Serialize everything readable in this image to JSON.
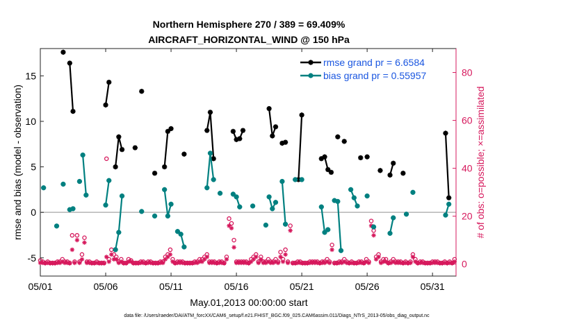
{
  "chart_data": {
    "type": "line",
    "title_lines": [
      "Northern Hemisphere 270 / 389 = 69.409%",
      "AIRCRAFT_HORIZONTAL_WIND @ 150 hPa"
    ],
    "xlabel": "May.01,2013 00:00:00 start",
    "ylabel": "rmse and bias (model - observation)",
    "y2label": "# of obs: o=possible; ×=assimilated",
    "xlim": [
      0,
      31.8
    ],
    "ylim": [
      -7,
      18
    ],
    "y2lim": [
      -5,
      90
    ],
    "x_ticks": [
      0,
      5,
      10,
      15,
      20,
      25,
      30
    ],
    "x_tick_labels": [
      "05/01",
      "05/06",
      "05/11",
      "05/16",
      "05/21",
      "05/26",
      "05/31"
    ],
    "y_ticks": [
      -5,
      0,
      5,
      10,
      15
    ],
    "y2_ticks": [
      0,
      20,
      40,
      60,
      80
    ],
    "zero_line": 0,
    "grid": false,
    "colors": {
      "rmse": "#000000",
      "bias": "#008080",
      "obs": "#d6185c",
      "zero": "#b4b4b4"
    },
    "legend": {
      "placement": "top-right",
      "entries": [
        {
          "key": "rmse",
          "label": "rmse grand pr = 6.6584"
        },
        {
          "key": "bias",
          "label": "bias grand pr = 0.55957"
        }
      ]
    },
    "series": [
      {
        "key": "rmse",
        "segments": [
          [
            [
              1.75,
              17.6
            ]
          ],
          [
            [
              2.25,
              16.4
            ],
            [
              2.5,
              11.1
            ]
          ],
          [
            [
              5.0,
              11.8
            ],
            [
              5.25,
              14.3
            ]
          ],
          [
            [
              5.75,
              5.0
            ],
            [
              6.0,
              8.3
            ],
            [
              6.25,
              6.9
            ]
          ],
          [
            [
              7.25,
              7.1
            ]
          ],
          [
            [
              7.75,
              13.3
            ]
          ],
          [
            [
              8.75,
              4.3
            ]
          ],
          [
            [
              9.5,
              5.0
            ],
            [
              9.75,
              8.9
            ],
            [
              10.0,
              9.2
            ]
          ],
          [
            [
              11.0,
              6.4
            ]
          ],
          [
            [
              12.75,
              9.0
            ],
            [
              13.0,
              11.0
            ],
            [
              13.25,
              5.9
            ]
          ],
          [
            [
              14.75,
              8.9
            ],
            [
              15.0,
              8.0
            ],
            [
              15.25,
              8.1
            ],
            [
              15.5,
              9.0
            ]
          ],
          [
            [
              17.5,
              11.4
            ],
            [
              17.75,
              8.4
            ],
            [
              18.0,
              9.4
            ]
          ],
          [
            [
              18.5,
              7.6
            ],
            [
              18.75,
              7.7
            ]
          ],
          [
            [
              19.75,
              3.6
            ],
            [
              20.0,
              10.7
            ]
          ],
          [
            [
              21.5,
              5.9
            ],
            [
              21.75,
              6.1
            ],
            [
              22.0,
              4.7
            ],
            [
              22.25,
              4.4
            ]
          ],
          [
            [
              22.75,
              8.3
            ]
          ],
          [
            [
              23.25,
              7.8
            ]
          ],
          [
            [
              24.5,
              6.0
            ]
          ],
          [
            [
              25.0,
              6.1
            ]
          ],
          [
            [
              26.0,
              4.6
            ]
          ],
          [
            [
              26.75,
              4.1
            ],
            [
              27.0,
              5.4
            ]
          ],
          [
            [
              27.75,
              4.3
            ]
          ],
          [
            [
              31.0,
              8.7
            ],
            [
              31.25,
              1.6
            ]
          ]
        ]
      },
      {
        "key": "bias",
        "segments": [
          [
            [
              0.25,
              2.7
            ]
          ],
          [
            [
              1.25,
              -1.5
            ]
          ],
          [
            [
              1.75,
              3.1
            ]
          ],
          [
            [
              2.25,
              0.3
            ],
            [
              2.5,
              0.4
            ]
          ],
          [
            [
              3.0,
              3.4
            ]
          ],
          [
            [
              3.25,
              6.3
            ],
            [
              3.5,
              1.9
            ]
          ],
          [
            [
              5.0,
              0.8
            ],
            [
              5.25,
              3.5
            ]
          ],
          [
            [
              5.75,
              -4.1
            ],
            [
              6.0,
              -2.2
            ],
            [
              6.25,
              1.8
            ]
          ],
          [
            [
              7.75,
              0.1
            ]
          ],
          [
            [
              8.75,
              -0.4
            ]
          ],
          [
            [
              9.5,
              2.5
            ],
            [
              9.75,
              -0.4
            ],
            [
              10.0,
              0.9
            ]
          ],
          [
            [
              10.5,
              -2.1
            ]
          ],
          [
            [
              10.75,
              -2.4
            ],
            [
              11.0,
              -3.8
            ]
          ],
          [
            [
              12.75,
              2.7
            ],
            [
              13.0,
              6.5
            ],
            [
              13.25,
              3.6
            ]
          ],
          [
            [
              13.75,
              2.1
            ]
          ],
          [
            [
              14.75,
              2.0
            ],
            [
              15.0,
              1.7
            ],
            [
              15.25,
              0.6
            ]
          ],
          [
            [
              16.25,
              0.7
            ]
          ],
          [
            [
              17.25,
              -1.4
            ]
          ],
          [
            [
              17.5,
              1.7
            ],
            [
              17.75,
              0.4
            ],
            [
              18.0,
              1.1
            ]
          ],
          [
            [
              18.5,
              3.4
            ],
            [
              18.75,
              -1.3
            ]
          ],
          [
            [
              19.5,
              3.6
            ]
          ],
          [
            [
              20.0,
              3.6
            ]
          ],
          [
            [
              21.5,
              0.6
            ],
            [
              21.75,
              -2.2
            ],
            [
              22.0,
              -1.9
            ]
          ],
          [
            [
              22.5,
              1.3
            ]
          ],
          [
            [
              22.75,
              1.2
            ],
            [
              23.0,
              -4.2
            ]
          ],
          [
            [
              23.75,
              2.5
            ],
            [
              24.0,
              1.6
            ],
            [
              24.25,
              0.7
            ]
          ],
          [
            [
              25.0,
              1.8
            ]
          ],
          [
            [
              25.5,
              -1.6
            ]
          ],
          [
            [
              26.75,
              -2.3
            ],
            [
              27.0,
              -0.6
            ]
          ],
          [
            [
              28.0,
              -0.2
            ]
          ],
          [
            [
              28.5,
              2.2
            ]
          ],
          [
            [
              31.0,
              -0.3
            ],
            [
              31.25,
              0.9
            ]
          ]
        ]
      }
    ],
    "obs_possible_y2": [
      1.5,
      1,
      0.5,
      1,
      0.5,
      0.5,
      0.5,
      1,
      1,
      2,
      1,
      1,
      0.5,
      12,
      1,
      12,
      1,
      4,
      11,
      1,
      1,
      0.5,
      0.5,
      1,
      0.5,
      0.5,
      0.5,
      44,
      2,
      6,
      4,
      3,
      1,
      2,
      0.5,
      0.5,
      2,
      1.5,
      0.5,
      0.5,
      0.5,
      1,
      1,
      0.5,
      1,
      1,
      0.5,
      0.5,
      0.5,
      1,
      1,
      3,
      4,
      6,
      2,
      0.5,
      1,
      1,
      1,
      0.5,
      0.5,
      0.5,
      0.5,
      1,
      1,
      2,
      2,
      3,
      4,
      1,
      1,
      1,
      0.5,
      1,
      1,
      0.5,
      3,
      19,
      17,
      10,
      1,
      1,
      1,
      1,
      1,
      0.5,
      2,
      3,
      4,
      1,
      3,
      1,
      1,
      2,
      1,
      1,
      2,
      1,
      5,
      2,
      6,
      1,
      16,
      0.5,
      0.5,
      1,
      1,
      0.5,
      0.5,
      0.5,
      1,
      1,
      1,
      1,
      0.5,
      1,
      1,
      2,
      1,
      8,
      0.5,
      0.5,
      1,
      1,
      2,
      1,
      0.5,
      1,
      0.5,
      0.5,
      1,
      1,
      0.5,
      2,
      1,
      18,
      14,
      3,
      4,
      1,
      2,
      2,
      0.5,
      1,
      2,
      1,
      1,
      1,
      0.5,
      1,
      0.5,
      1,
      4,
      2,
      0.5,
      1,
      1,
      0.5,
      0.5,
      0.5,
      1,
      1,
      1,
      0.5,
      0.5,
      1,
      0.5,
      1,
      0.5,
      2,
      4,
      2,
      1,
      2,
      0.5,
      1,
      1
    ],
    "obs_assimilated_y2": [
      0.5,
      0.5,
      0.3,
      0.5,
      0.3,
      0.3,
      0.3,
      0.5,
      0.5,
      1,
      0.5,
      0.5,
      0.3,
      6,
      0.5,
      10,
      0.5,
      2,
      9,
      0.5,
      0.5,
      0.3,
      0.3,
      0.5,
      0.3,
      0.3,
      0.3,
      3,
      1,
      4,
      2,
      2,
      0.5,
      1,
      0.3,
      0.3,
      1,
      1,
      0.3,
      0.3,
      0.3,
      0.5,
      0.5,
      0.3,
      0.5,
      0.5,
      0.3,
      0.3,
      0.3,
      0.5,
      0.5,
      2,
      3,
      4,
      1,
      0.3,
      0.5,
      0.5,
      0.5,
      0.3,
      0.3,
      0.3,
      0.3,
      0.5,
      0.5,
      1,
      1,
      2,
      3,
      0.5,
      0.5,
      0.5,
      0.3,
      0.5,
      0.5,
      0.3,
      2,
      16,
      15,
      7,
      0.5,
      0.5,
      0.5,
      0.5,
      0.5,
      0.3,
      1,
      2,
      3,
      0.5,
      2,
      0.5,
      0.5,
      1,
      0.5,
      0.5,
      1,
      0.5,
      3,
      1,
      4,
      0.5,
      14,
      0.3,
      0.3,
      0.5,
      0.5,
      0.3,
      0.3,
      0.3,
      0.5,
      0.5,
      0.5,
      0.5,
      0.3,
      0.5,
      0.5,
      1,
      0.5,
      6,
      0.3,
      0.3,
      0.5,
      0.5,
      1,
      0.5,
      0.3,
      0.5,
      0.3,
      0.3,
      0.5,
      0.5,
      0.3,
      1,
      0.5,
      16,
      12,
      2,
      3,
      0.5,
      1,
      1,
      0.3,
      0.5,
      1,
      0.5,
      0.5,
      0.5,
      0.3,
      0.5,
      0.3,
      0.5,
      3,
      1,
      0.3,
      0.5,
      0.5,
      0.3,
      0.3,
      0.3,
      0.5,
      0.5,
      0.5,
      0.3,
      0.3,
      0.5,
      0.3,
      0.5,
      0.3,
      1,
      3,
      1,
      0.5,
      1,
      0.3,
      0.5,
      0.5
    ],
    "obs_x_start": 0,
    "obs_x_step": 0.1875
  },
  "footnote": "data file: /Users/raeder/DAI/ATM_forcXX/CAM6_setup/f.e21.FHIST_BGC.f09_025.CAM6assim.011/Diags_NTrS_2013-05/obs_diag_output.nc"
}
